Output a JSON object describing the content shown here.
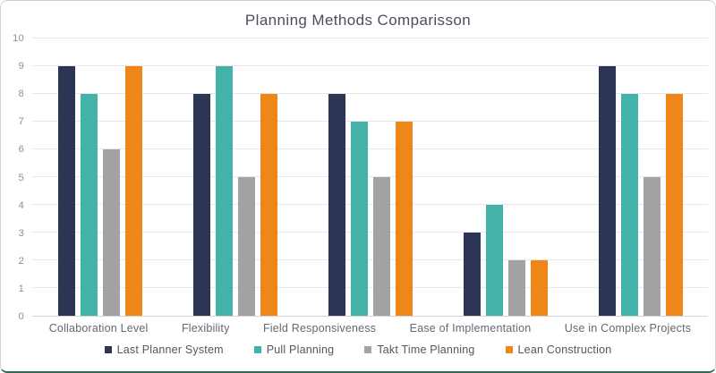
{
  "card": {
    "border_color": "#d4d7d4",
    "bottom_border_color": "#2f6b50",
    "background": "#ffffff"
  },
  "chart_data": {
    "type": "bar",
    "title": "Planning Methods Comparisson",
    "categories": [
      "Collaboration Level",
      "Flexibility",
      "Field Responsiveness",
      "Ease of Implementation",
      "Use in Complex Projects"
    ],
    "series": [
      {
        "name": "Last Planner System",
        "color": "#2c3654",
        "values": [
          9,
          8,
          8,
          3,
          9
        ]
      },
      {
        "name": "Pull Planning",
        "color": "#44b2a8",
        "values": [
          8,
          9,
          7,
          4,
          8
        ]
      },
      {
        "name": "Takt Time Planning",
        "color": "#a3a3a5",
        "values": [
          6,
          5,
          5,
          2,
          5
        ]
      },
      {
        "name": "Lean Construction",
        "color": "#ef8718",
        "values": [
          9,
          8,
          7,
          2,
          8
        ]
      }
    ],
    "xlabel": "",
    "ylabel": "",
    "ylim": [
      0,
      10
    ],
    "yticks": [
      0,
      1,
      2,
      3,
      4,
      5,
      6,
      7,
      8,
      9,
      10
    ],
    "grid": true,
    "gridline_color": "#e7e7ea",
    "legend_position": "bottom"
  }
}
